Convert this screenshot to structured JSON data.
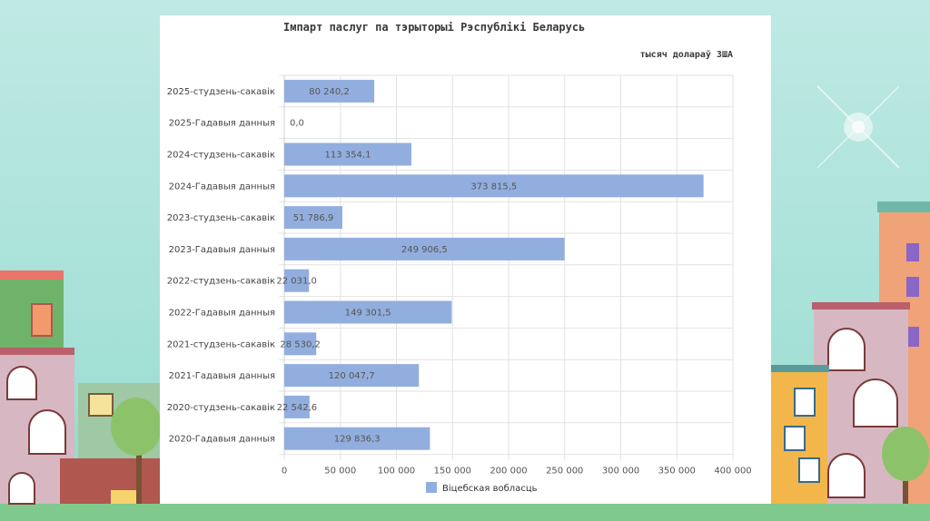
{
  "colors": {
    "bar": "#92aede",
    "grid": "#e2e2e2",
    "axis": "#d0d0d0"
  },
  "chart_data": {
    "type": "bar",
    "orientation": "horizontal",
    "title": "Імпарт паслуг па тэрыторыі Рэспублікі Беларусь",
    "unit": "тысяч долараў ЗША",
    "categories": [
      "2025-студзень-сакавік",
      "2025-Гадавыя данныя",
      "2024-студзень-сакавік",
      "2024-Гадавыя данныя",
      "2023-студзень-сакавік",
      "2023-Гадавыя данныя",
      "2022-студзень-сакавік",
      "2022-Гадавыя данныя",
      "2021-студзень-сакавік",
      "2021-Гадавыя данныя",
      "2020-студзень-сакавік",
      "2020-Гадавыя данныя"
    ],
    "values": [
      80240.2,
      0.0,
      113354.1,
      373815.5,
      51786.9,
      249906.5,
      22031.0,
      149301.5,
      28530.2,
      120047.7,
      22542.6,
      129836.3
    ],
    "value_labels": [
      "80 240,2",
      "0,0",
      "113 354,1",
      "373 815,5",
      "51 786,9",
      "249 906,5",
      "22 031,0",
      "149 301,5",
      "28 530,2",
      "120 047,7",
      "22 542,6",
      "129 836,3"
    ],
    "xlim": [
      0,
      400000
    ],
    "xticks": [
      0,
      50000,
      100000,
      150000,
      200000,
      250000,
      300000,
      350000,
      400000
    ],
    "xtick_labels": [
      "0",
      "50 000",
      "100 000",
      "150 000",
      "200 000",
      "250 000",
      "300 000",
      "350 000",
      "400 000"
    ],
    "series": [
      {
        "name": "Віцебская вобласць"
      }
    ],
    "legend": "bottom",
    "grid": true
  }
}
